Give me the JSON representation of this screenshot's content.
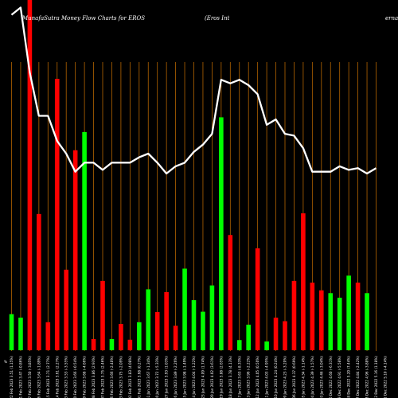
{
  "chart_data": {
    "type": "bar",
    "title": "MunafaSutra  Money Flow  Charts for EROS",
    "subtitle": "(Eros Int",
    "subtitle_cut": "ernational",
    "corner_label": "%",
    "colors": {
      "background": "#000000",
      "up_bar": "#00ff00",
      "down_bar": "#ff0000",
      "vline": "#b46400",
      "price_line": "#ffffff",
      "text": "#ffffff"
    },
    "y_range": [
      0,
      100
    ],
    "categories": [
      "Wed 22 Feb 2023 3.51 (1.15%)",
      "Tue 21 Feb 2023 3.47 (-0.86%)",
      "Fri 17 Feb 2023 3.50 (-3.85%)",
      "Thu 16 Feb 2023 3.64 (-1.89%)",
      "Wed 15 Feb 2023 3.71 (2.77%)",
      "Tue 14 Feb 2023 3.61 (2.27%)",
      "Mon 13 Feb 2023 3.53 (-3.55%)",
      "Fri 10 Feb 2023 3.66 (-0.54%)",
      "Thu 09 Feb 2023 3.68 (-4.66%)",
      "Wed 08 Feb 2023 3.86 (2.93%)",
      "Tue 07 Feb 2023 3.75 (2.46%)",
      "Mon 06 Feb 2023 3.66 (-2.40%)",
      "Fri 03 Feb 2023 3.75 (-2.09%)",
      "Thu 02 Feb 2023 3.83 (4.08%)",
      "Wed 01 Feb 2023 3.68 (0.27%)",
      "Tue 31 Jan 2023 3.67 (-1.34%)",
      "Mon 30 Jan 2023 3.72 (-5.33%)",
      "Fri 27 Jan 2023 3.93 (1.03%)",
      "Thu 26 Jan 2023 3.89 (-2.26%)",
      "Wed 25 Jan 2023 3.98 (-1.49%)",
      "Tue 24 Jan 2023 4.04 (-1.22%)",
      "Mon 23 Jan 2023 4.09 (1.74%)",
      "Fri 20 Jan 2023 4.02 (3.61%)",
      "Thu 19 Jan 2023 3.88 (2.65%)",
      "Wed 18 Jan 2023 3.78 (4.13%)",
      "Tue 17 Jan 2023 3.63 (-8.33%)",
      "Fri 13 Jan 2023 3.96 (-2.22%)",
      "Thu 12 Jan 2023 4.05 (0.50%)",
      "Wed 11 Jan 2023 4.03 (-4.95%)",
      "Tue 10 Jan 2023 4.24 (0.24%)",
      "Mon 09 Jan 2023 4.23 (-3.20%)",
      "Fri 06 Jan 2023 4.37 (0.69%)",
      "Thu 05 Jan 2023 4.34 (-1.14%)",
      "Wed 04 Jan 2023 4.39 (-1.57%)",
      "Tue 03 Jan 2023 4.46 (-3.04%)",
      "Fri 30 Dec 2022 4.60 (-6.31%)",
      "Thu 29 Dec 2022 4.91 (-5.58%)",
      "Wed 28 Dec 2022 5.20 (7.44%)",
      "Tue 27 Dec 2022 4.84 (-2.42%)",
      "Fri 23 Dec 2022 4.96 (-3.88%)",
      "Thu 22 Dec 2022 5.16 (1.18%)",
      "Wed 21 Dec 2022 5.10 (-4.14%)"
    ],
    "bars": [
      {
        "dir": "up",
        "value": 10.3
      },
      {
        "dir": "up",
        "value": 9.3
      },
      {
        "dir": "down",
        "value": 100
      },
      {
        "dir": "down",
        "value": 38.9
      },
      {
        "dir": "down",
        "value": 8.0
      },
      {
        "dir": "down",
        "value": 77.5
      },
      {
        "dir": "down",
        "value": 23.0
      },
      {
        "dir": "down",
        "value": 57.1
      },
      {
        "dir": "up",
        "value": 62.3
      },
      {
        "dir": "down",
        "value": 3.2
      },
      {
        "dir": "down",
        "value": 19.8
      },
      {
        "dir": "up",
        "value": 3.2
      },
      {
        "dir": "down",
        "value": 7.5
      },
      {
        "dir": "down",
        "value": 3.0
      },
      {
        "dir": "up",
        "value": 8.0
      },
      {
        "dir": "up",
        "value": 17.4
      },
      {
        "dir": "down",
        "value": 10.9
      },
      {
        "dir": "down",
        "value": 16.6
      },
      {
        "dir": "down",
        "value": 7.0
      },
      {
        "dir": "up",
        "value": 23.3
      },
      {
        "dir": "up",
        "value": 14.3
      },
      {
        "dir": "up",
        "value": 11.0
      },
      {
        "dir": "up",
        "value": 18.5
      },
      {
        "dir": "up",
        "value": 66.5
      },
      {
        "dir": "down",
        "value": 32.9
      },
      {
        "dir": "up",
        "value": 2.9
      },
      {
        "dir": "up",
        "value": 7.3
      },
      {
        "dir": "down",
        "value": 29.1
      },
      {
        "dir": "up",
        "value": 2.5
      },
      {
        "dir": "down",
        "value": 9.3
      },
      {
        "dir": "down",
        "value": 8.3
      },
      {
        "dir": "down",
        "value": 19.8
      },
      {
        "dir": "down",
        "value": 39.1
      },
      {
        "dir": "down",
        "value": 19.3
      },
      {
        "dir": "down",
        "value": 17.1
      },
      {
        "dir": "up",
        "value": 16.3
      },
      {
        "dir": "up",
        "value": 15.0
      },
      {
        "dir": "up",
        "value": 21.3
      },
      {
        "dir": "down",
        "value": 19.3
      },
      {
        "dir": "up",
        "value": 16.3
      }
    ],
    "price_line": [
      5.16,
      5.2,
      4.84,
      4.6,
      4.6,
      4.46,
      4.39,
      4.29,
      4.34,
      4.34,
      4.3,
      4.34,
      4.34,
      4.34,
      4.37,
      4.39,
      4.34,
      4.28,
      4.32,
      4.34,
      4.4,
      4.44,
      4.5,
      4.8,
      4.78,
      4.8,
      4.77,
      4.72,
      4.55,
      4.58,
      4.5,
      4.49,
      4.42,
      4.29,
      4.29,
      4.29,
      4.32,
      4.3,
      4.31,
      4.28,
      4.31
    ],
    "price_range": [
      3.3,
      5.22
    ]
  }
}
